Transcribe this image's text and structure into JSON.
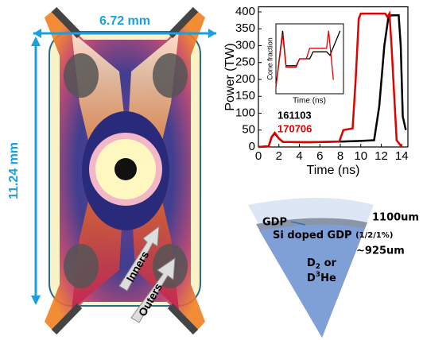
{
  "chart_data": {
    "type": "line",
    "xlabel": "Time (ns)",
    "ylabel": "Power (TW)",
    "xlim": [
      0,
      14.6
    ],
    "ylim": [
      0,
      415
    ],
    "xticks": [
      0,
      2,
      4,
      6,
      8,
      10,
      12,
      14
    ],
    "yticks": [
      0,
      50,
      100,
      150,
      200,
      250,
      300,
      350,
      400
    ],
    "series": [
      {
        "name": "161103",
        "color": "#000000",
        "x": [
          0,
          1,
          1.3,
          1.6,
          2.0,
          2.4,
          5,
          8,
          10,
          11.3,
          11.8,
          12.3,
          12.7,
          13.0,
          13.7,
          13.9,
          14.1,
          14.4
        ],
        "values": [
          0,
          2,
          30,
          40,
          25,
          15,
          14,
          16,
          18,
          20,
          120,
          300,
          385,
          390,
          390,
          300,
          90,
          50
        ]
      },
      {
        "name": "170706",
        "color": "#e00000",
        "x": [
          0,
          1,
          1.3,
          1.6,
          2.0,
          2.4,
          5,
          7.9,
          8.3,
          9.2,
          9.5,
          9.8,
          10.0,
          12.4,
          12.6,
          12.8,
          13.0,
          13.5,
          14
        ],
        "values": [
          0,
          2,
          30,
          42,
          25,
          15,
          14,
          16,
          50,
          55,
          200,
          380,
          395,
          395,
          385,
          395,
          300,
          20,
          0
        ]
      }
    ],
    "inset": {
      "ylabel": "Cone fraction",
      "xlabel": "Time (ns)",
      "xlim": [
        0,
        1
      ],
      "ylim": [
        0,
        1
      ],
      "series": [
        {
          "color": "#000000",
          "x": [
            0,
            0.1,
            0.15,
            0.3,
            0.35,
            0.5,
            0.55,
            0.75,
            0.8,
            0.95
          ],
          "values": [
            0.1,
            0.9,
            0.4,
            0.4,
            0.5,
            0.5,
            0.6,
            0.6,
            0.55,
            0.9
          ]
        },
        {
          "color": "#e00000",
          "x": [
            0,
            0.1,
            0.15,
            0.3,
            0.35,
            0.45,
            0.5,
            0.75,
            0.78,
            0.85
          ],
          "values": [
            0.1,
            0.85,
            0.38,
            0.38,
            0.5,
            0.5,
            0.65,
            0.65,
            0.9,
            0.2
          ]
        }
      ]
    }
  },
  "hohlraum": {
    "width_label": "6.72 mm",
    "height_label": "11.24 mm",
    "inner_label": "Inners",
    "outer_label": "Outers"
  },
  "capsule": {
    "ablator": "GDP",
    "dopant": "Si doped GDP",
    "dopant_note": "(1/2/1%)",
    "outer_radius": "1100um",
    "inner_radius": "~925um",
    "fuel_line1": [
      "D",
      "2",
      " or"
    ],
    "fuel_line2": [
      "D",
      "3",
      "He"
    ]
  }
}
